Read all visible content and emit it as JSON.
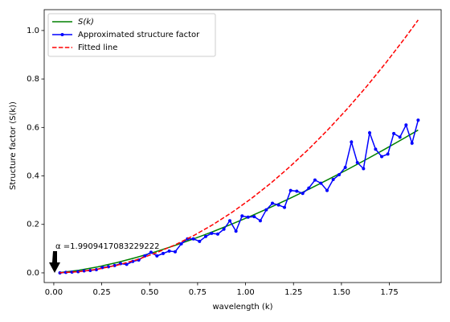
{
  "chart_data": {
    "type": "line",
    "xlabel": "wavelength (k)",
    "ylabel": "Structure factor (S(k))",
    "annotation": "α =1.9909417083229222",
    "xlim": [
      -0.05,
      2.02
    ],
    "ylim": [
      -0.04,
      1.086
    ],
    "xticks": [
      {
        "value": 0,
        "label": "0.00"
      },
      0.25,
      {
        "value": 0.5,
        "label": "0.50"
      },
      0.75,
      {
        "value": 1,
        "label": "1.00"
      },
      1.25,
      {
        "value": 1.5,
        "label": "1.50"
      },
      1.75
    ],
    "yticks": [
      {
        "value": 0,
        "label": "0.0"
      },
      0.2,
      0.4,
      0.6,
      0.8,
      {
        "value": 1,
        "label": "1.0"
      }
    ],
    "legend": "upper left",
    "series": [
      {
        "name": "S(k)",
        "color": "#008000",
        "linestyle": "solid",
        "marker": false,
        "x": [
          0.03,
          0.13,
          0.23,
          0.33,
          0.43,
          0.53,
          0.63,
          0.73,
          0.83,
          0.93,
          1.03,
          1.13,
          1.23,
          1.33,
          1.43,
          1.53,
          1.63,
          1.73,
          1.83,
          1.9
        ],
        "values": [
          0.0012,
          0.0105,
          0.0248,
          0.0427,
          0.0634,
          0.0868,
          0.1125,
          0.1403,
          0.1701,
          0.2018,
          0.2352,
          0.2703,
          0.3069,
          0.3451,
          0.3848,
          0.4258,
          0.4682,
          0.512,
          0.557,
          0.5893
        ]
      },
      {
        "name": "Approximated structure factor",
        "color": "#0000ff",
        "linestyle": "solid",
        "marker": true,
        "x": [
          0.032,
          0.063,
          0.095,
          0.127,
          0.158,
          0.19,
          0.222,
          0.253,
          0.285,
          0.317,
          0.348,
          0.38,
          0.412,
          0.443,
          0.475,
          0.507,
          0.538,
          0.57,
          0.602,
          0.633,
          0.665,
          0.697,
          0.728,
          0.76,
          0.792,
          0.823,
          0.855,
          0.887,
          0.918,
          0.95,
          0.982,
          1.013,
          1.045,
          1.077,
          1.108,
          1.14,
          1.172,
          1.203,
          1.235,
          1.267,
          1.298,
          1.33,
          1.362,
          1.393,
          1.425,
          1.457,
          1.488,
          1.52,
          1.552,
          1.583,
          1.615,
          1.647,
          1.678,
          1.71,
          1.742,
          1.773,
          1.805,
          1.837,
          1.868,
          1.9
        ],
        "values": [
          0.0,
          0.002,
          0.003,
          0.005,
          0.008,
          0.01,
          0.013,
          0.022,
          0.025,
          0.03,
          0.038,
          0.035,
          0.047,
          0.053,
          0.07,
          0.085,
          0.07,
          0.08,
          0.09,
          0.087,
          0.12,
          0.14,
          0.14,
          0.13,
          0.15,
          0.163,
          0.16,
          0.18,
          0.215,
          0.172,
          0.235,
          0.23,
          0.232,
          0.215,
          0.26,
          0.287,
          0.28,
          0.27,
          0.34,
          0.337,
          0.328,
          0.35,
          0.383,
          0.37,
          0.34,
          0.385,
          0.405,
          0.435,
          0.54,
          0.455,
          0.43,
          0.578,
          0.51,
          0.48,
          0.49,
          0.575,
          0.56,
          0.61,
          0.535,
          0.63
        ]
      },
      {
        "name": "Fitted line",
        "color": "#ff0000",
        "linestyle": "dashed",
        "marker": false,
        "x": [
          0.03,
          0.13,
          0.23,
          0.33,
          0.43,
          0.53,
          0.63,
          0.73,
          0.83,
          0.93,
          1.03,
          1.13,
          1.23,
          1.33,
          1.43,
          1.53,
          1.63,
          1.73,
          1.83,
          1.9
        ],
        "values": [
          0.0003,
          0.0049,
          0.0153,
          0.0315,
          0.0534,
          0.0812,
          0.1147,
          0.154,
          0.1991,
          0.25,
          0.3066,
          0.369,
          0.4372,
          0.5112,
          0.591,
          0.6765,
          0.7678,
          0.865,
          0.9678,
          1.0433
        ]
      }
    ]
  }
}
